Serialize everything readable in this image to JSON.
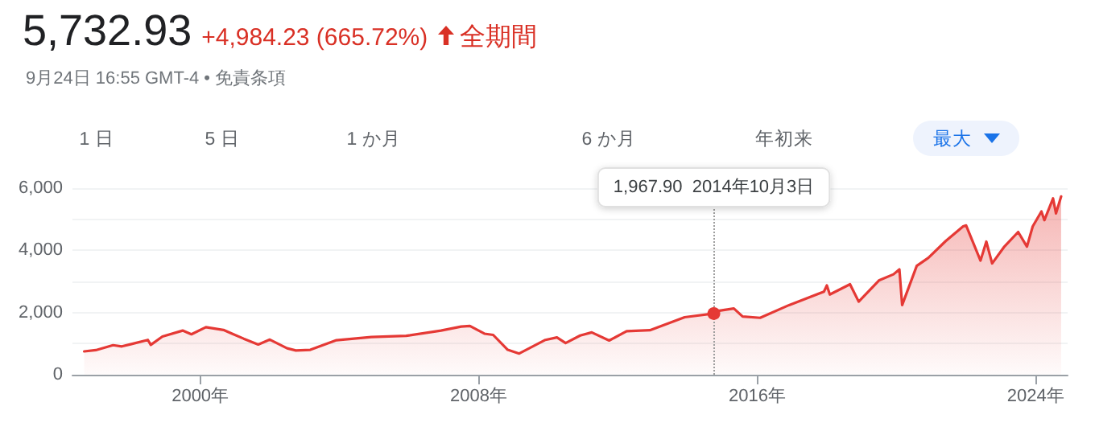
{
  "chart_data": {
    "type": "area",
    "title": "5,732.93",
    "subtitle": "+4,984.23 (665.72%)",
    "annotations": [
      "全期間",
      "9月24日 16:55 GMT-4 • 免責条項",
      "1 日",
      "5 日",
      "1 か月",
      "6 か月",
      "年初来",
      "最大",
      "1,967.90  2014年10月3日"
    ],
    "x": [
      "1996-09",
      "1997-01",
      "1997-07",
      "1997-10",
      "1998-01",
      "1998-07",
      "1998-08",
      "1998-12",
      "1999-07",
      "1999-10",
      "2000-03",
      "2000-09",
      "2000-12",
      "2001-04",
      "2001-09",
      "2002-01",
      "2002-07",
      "2002-10",
      "2003-03",
      "2003-12",
      "2004-12",
      "2005-12",
      "2006-12",
      "2007-07",
      "2007-10",
      "2008-03",
      "2008-06",
      "2008-11",
      "2009-03",
      "2009-12",
      "2010-04",
      "2010-07",
      "2010-12",
      "2011-04",
      "2011-10",
      "2012-04",
      "2012-12",
      "2013-12",
      "2014-10-03",
      "2014-12",
      "2015-05",
      "2015-08",
      "2016-02",
      "2016-12",
      "2017-12",
      "2018-01",
      "2018-02",
      "2018-09",
      "2018-12",
      "2019-07",
      "2019-12",
      "2020-02",
      "2020-03",
      "2020-08",
      "2020-12",
      "2021-06",
      "2021-12",
      "2022-01",
      "2022-06",
      "2022-08",
      "2022-10",
      "2023-02",
      "2023-07",
      "2023-10",
      "2023-12",
      "2024-03",
      "2024-04",
      "2024-07",
      "2024-08",
      "2024-09-24"
    ],
    "series": [
      {
        "color": "#e53935",
        "values": [
          750,
          790,
          950,
          910,
          980,
          1120,
          960,
          1230,
          1420,
          1300,
          1530,
          1440,
          1320,
          1160,
          970,
          1130,
          850,
          780,
          800,
          1110,
          1210,
          1250,
          1420,
          1550,
          1570,
          1320,
          1280,
          800,
          680,
          1120,
          1200,
          1020,
          1260,
          1360,
          1100,
          1400,
          1430,
          1850,
          1967.9,
          2060,
          2130,
          1870,
          1830,
          2240,
          2670,
          2870,
          2580,
          2910,
          2350,
          3030,
          3230,
          3390,
          2240,
          3500,
          3760,
          4300,
          4770,
          4800,
          3670,
          4280,
          3580,
          4100,
          4590,
          4120,
          4770,
          5250,
          4970,
          5670,
          5190,
          5732.93
        ]
      }
    ],
    "xlim": [
      "1996-05",
      "2024-12"
    ],
    "xticks": [
      {
        "value": "2000-01-01",
        "label": "2000年"
      },
      {
        "value": "2008-01-01",
        "label": "2008年"
      },
      {
        "value": "2016-01-01",
        "label": "2016年"
      },
      {
        "value": "2024-01-01",
        "label": "2024年"
      }
    ],
    "ylim": [
      0,
      6000
    ],
    "yticks": [
      0,
      {
        "value": 2000,
        "label": "2,000"
      },
      {
        "value": 4000,
        "label": "4,000"
      },
      {
        "value": 6000,
        "label": "6,000"
      }
    ],
    "ref_lines": [
      {
        "axis": "x",
        "value": "2014-10-03",
        "line_style": "dotted",
        "color": "#9e9e9e"
      }
    ],
    "grid": "y",
    "marker": "none",
    "line_style": "solid"
  }
}
